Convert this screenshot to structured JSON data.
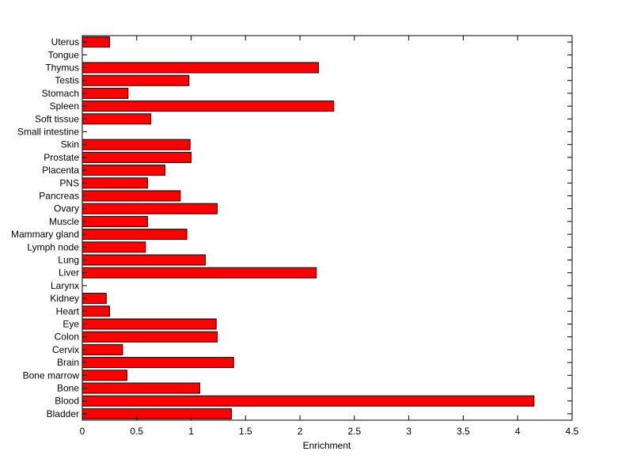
{
  "chart_data": {
    "type": "bar",
    "orientation": "horizontal",
    "xlabel": "Enrichment",
    "ylabel": "",
    "title": "",
    "xlim": [
      0,
      4.5
    ],
    "xticks": [
      0,
      0.5,
      1,
      1.5,
      2,
      2.5,
      3,
      3.5,
      4,
      4.5
    ],
    "xtick_labels": [
      "0",
      "0.5",
      "1",
      "1.5",
      "2",
      "2.5",
      "3",
      "3.5",
      "4",
      "4.5"
    ],
    "categories": [
      "Bladder",
      "Blood",
      "Bone",
      "Bone marrow",
      "Brain",
      "Cervix",
      "Colon",
      "Eye",
      "Heart",
      "Kidney",
      "Larynx",
      "Liver",
      "Lung",
      "Lymph node",
      "Mammary gland",
      "Muscle",
      "Ovary",
      "Pancreas",
      "PNS",
      "Placenta",
      "Prostate",
      "Skin",
      "Small intestine",
      "Soft tissue",
      "Spleen",
      "Stomach",
      "Testis",
      "Thymus",
      "Tongue",
      "Uterus"
    ],
    "values": [
      1.37,
      4.15,
      1.08,
      0.41,
      1.39,
      0.37,
      1.24,
      1.23,
      0.25,
      0.22,
      0,
      2.15,
      1.13,
      0.58,
      0.96,
      0.6,
      1.24,
      0.9,
      0.6,
      0.76,
      1.0,
      0.99,
      0,
      0.63,
      2.31,
      0.42,
      0.98,
      2.17,
      0,
      0.25
    ],
    "bar_color": "#ff0000",
    "edge_color": "#000000",
    "grid": false
  }
}
